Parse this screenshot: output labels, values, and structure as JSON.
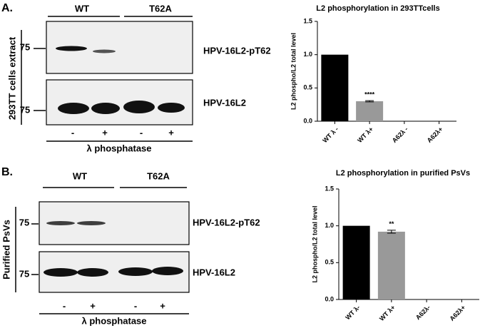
{
  "panels": [
    {
      "label": "A.",
      "groups": [
        "WT",
        "T62A"
      ],
      "side_label": "293TT cells extract",
      "blots": [
        {
          "marker": "75",
          "name": "HPV-16L2-pT62"
        },
        {
          "marker": "75",
          "name": "HPV-16L2"
        }
      ],
      "lanes": [
        "-",
        "+",
        "-",
        "+"
      ],
      "treatment": "λ phosphatase"
    },
    {
      "label": "B.",
      "groups": [
        "WT",
        "T62A"
      ],
      "side_label": "Purified PsVs",
      "blots": [
        {
          "marker": "75",
          "name": "HPV-16L2-pT62"
        },
        {
          "marker": "75",
          "name": "HPV-16L2"
        }
      ],
      "lanes": [
        "-",
        "+",
        "-",
        "+"
      ],
      "treatment": "λ phosphatase"
    }
  ],
  "chart_data": [
    {
      "type": "bar",
      "title": "L2 phosphorylation in 293TTcells",
      "y_label": "L2 phospho/L2 total level",
      "categories": [
        "WT λ -",
        "WT λ+",
        "A62λ -",
        "A62λ+"
      ],
      "values": [
        1.0,
        0.3,
        0,
        0
      ],
      "errors": [
        null,
        0.01,
        null,
        null
      ],
      "significance": [
        null,
        "****",
        null,
        null
      ],
      "colors": [
        "#000000",
        "#999999",
        "#999999",
        "#999999"
      ],
      "ylim": [
        0,
        1.5
      ],
      "yticks": [
        {
          "value": 0,
          "label": "0.0"
        },
        {
          "value": 0.5,
          "label": "0.5"
        },
        {
          "value": 1,
          "label": "1.0"
        },
        {
          "value": 1.5,
          "label": "1.5"
        }
      ]
    },
    {
      "type": "bar",
      "title": "L2 phosphorylation in purified PsVs",
      "y_label": "L2 phospho/L2 total level",
      "categories": [
        "WT λ-",
        "WT λ+",
        "A62λ-",
        "A62λ+"
      ],
      "values": [
        1.0,
        0.92,
        0,
        0
      ],
      "errors": [
        null,
        0.02,
        null,
        null
      ],
      "significance": [
        null,
        "**",
        null,
        null
      ],
      "colors": [
        "#000000",
        "#999999",
        "#999999",
        "#999999"
      ],
      "ylim": [
        0,
        1.5
      ],
      "yticks": [
        {
          "value": 0,
          "label": "0.0"
        },
        {
          "value": 0.5,
          "label": "0.5"
        },
        {
          "value": 1,
          "label": "1.0"
        },
        {
          "value": 1.5,
          "label": "1.5"
        }
      ]
    }
  ]
}
